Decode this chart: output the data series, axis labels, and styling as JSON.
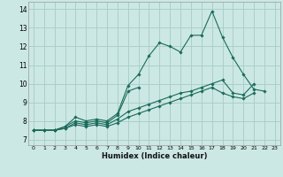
{
  "bg_color": "#cce8e4",
  "grid_color": "#aacfcb",
  "line_color": "#1a6b5a",
  "xlabel": "Humidex (Indice chaleur)",
  "xlim": [
    -0.5,
    23.5
  ],
  "ylim": [
    6.7,
    14.4
  ],
  "yticks": [
    7,
    8,
    9,
    10,
    11,
    12,
    13,
    14
  ],
  "xticks": [
    0,
    1,
    2,
    3,
    4,
    5,
    6,
    7,
    8,
    9,
    10,
    11,
    12,
    13,
    14,
    15,
    16,
    17,
    18,
    19,
    20,
    21,
    22,
    23
  ],
  "series": [
    {
      "x": [
        0,
        1,
        2,
        3,
        4,
        5,
        6,
        7,
        8,
        9,
        10,
        11,
        12,
        13,
        14,
        15,
        16,
        17,
        18,
        19,
        20,
        21,
        22
      ],
      "y": [
        7.5,
        7.5,
        7.5,
        7.7,
        8.2,
        8.0,
        8.1,
        8.0,
        8.4,
        9.9,
        10.5,
        11.5,
        12.2,
        12.0,
        11.7,
        12.6,
        12.6,
        13.9,
        12.5,
        11.4,
        10.5,
        9.7,
        9.6
      ]
    },
    {
      "x": [
        0,
        1,
        2,
        3,
        4,
        5,
        6,
        7,
        8,
        9,
        10
      ],
      "y": [
        7.5,
        7.5,
        7.5,
        7.7,
        8.0,
        7.9,
        8.0,
        7.9,
        8.3,
        9.6,
        9.8
      ]
    },
    {
      "x": [
        0,
        1,
        2,
        3,
        4,
        5,
        6,
        7,
        8,
        9,
        10,
        11,
        12,
        13,
        14,
        15,
        16,
        17,
        18,
        19,
        20,
        21
      ],
      "y": [
        7.5,
        7.5,
        7.5,
        7.6,
        7.9,
        7.8,
        7.9,
        7.8,
        8.1,
        8.5,
        8.7,
        8.9,
        9.1,
        9.3,
        9.5,
        9.6,
        9.8,
        10.0,
        10.2,
        9.5,
        9.4,
        10.0
      ]
    },
    {
      "x": [
        0,
        1,
        2,
        3,
        4,
        5,
        6,
        7,
        8,
        9,
        10,
        11,
        12,
        13,
        14,
        15,
        16,
        17,
        18,
        19,
        20,
        21
      ],
      "y": [
        7.5,
        7.5,
        7.5,
        7.6,
        7.8,
        7.7,
        7.8,
        7.7,
        7.9,
        8.2,
        8.4,
        8.6,
        8.8,
        9.0,
        9.2,
        9.4,
        9.6,
        9.8,
        9.5,
        9.3,
        9.2,
        9.5
      ]
    }
  ]
}
